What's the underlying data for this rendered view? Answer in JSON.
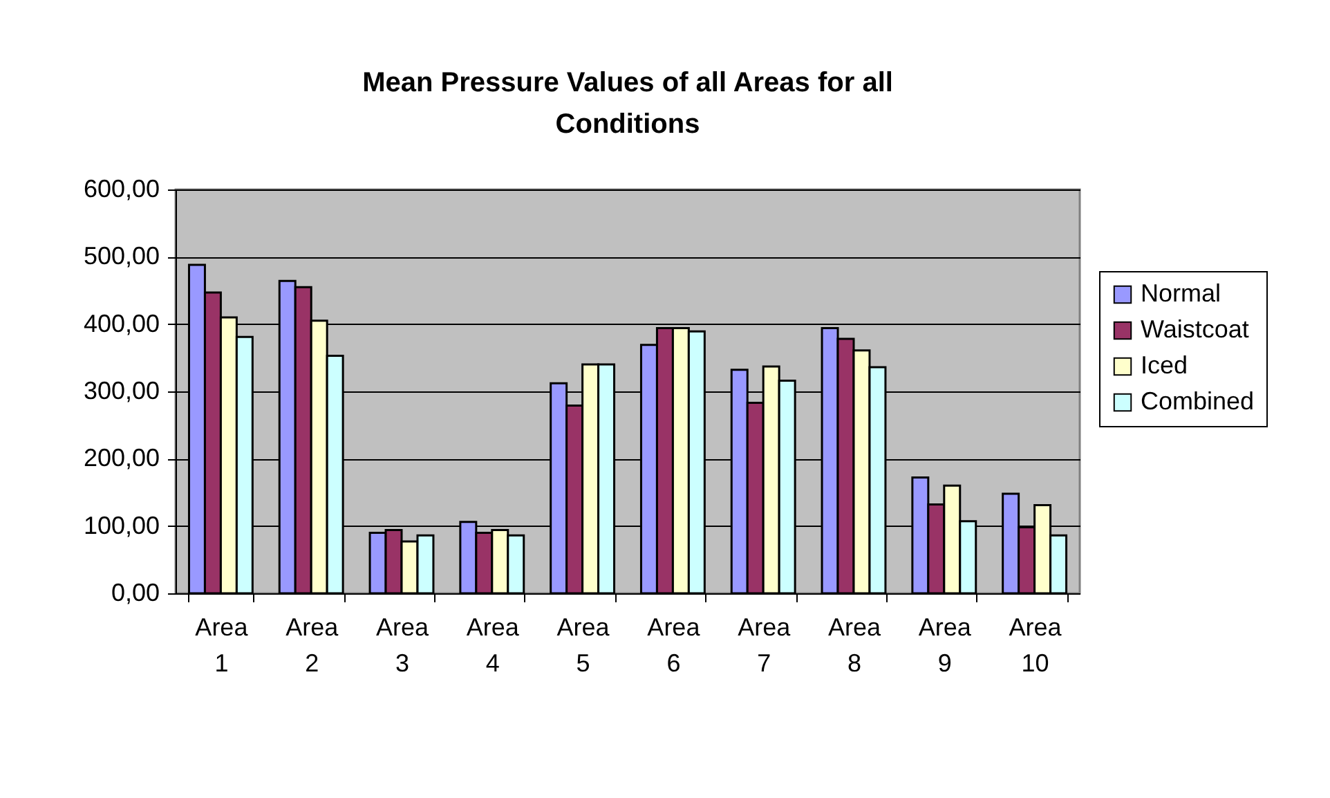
{
  "chart_data": {
    "type": "bar",
    "title": "Mean Pressure Values of all Areas for all Conditions",
    "categories": [
      "Area 1",
      "Area 2",
      "Area 3",
      "Area 4",
      "Area 5",
      "Area 6",
      "Area 7",
      "Area 8",
      "Area 9",
      "Area 10"
    ],
    "series": [
      {
        "name": "Normal",
        "color": "#9999ff",
        "values": [
          488,
          464,
          90,
          106,
          312,
          369,
          332,
          394,
          172,
          148
        ]
      },
      {
        "name": "Waistcoat",
        "color": "#993366",
        "values": [
          447,
          455,
          94,
          90,
          279,
          394,
          283,
          378,
          132,
          98
        ]
      },
      {
        "name": "Iced",
        "color": "#ffffcc",
        "values": [
          410,
          405,
          77,
          94,
          340,
          394,
          337,
          361,
          160,
          131
        ]
      },
      {
        "name": "Combined",
        "color": "#ccffff",
        "values": [
          381,
          353,
          86,
          86,
          340,
          389,
          316,
          336,
          107,
          86
        ]
      }
    ],
    "ylim": [
      0,
      600
    ],
    "yticks": [
      {
        "value": 0,
        "label": "0,00"
      },
      {
        "value": 100,
        "label": "100,00"
      },
      {
        "value": 200,
        "label": "200,00"
      },
      {
        "value": 300,
        "label": "300,00"
      },
      {
        "value": 400,
        "label": "400,00"
      },
      {
        "value": 500,
        "label": "500,00"
      },
      {
        "value": 600,
        "label": "600,00"
      }
    ],
    "grid": "y",
    "legend": "right"
  }
}
